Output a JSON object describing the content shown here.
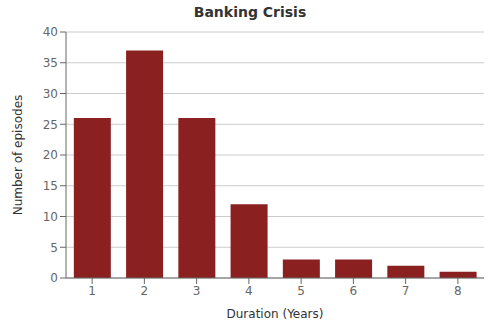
{
  "chart_data": {
    "type": "bar",
    "title": "Banking Crisis",
    "xlabel": "Duration (Years)",
    "ylabel": "Number of episodes",
    "categories": [
      1,
      2,
      3,
      4,
      5,
      6,
      7,
      8
    ],
    "values": [
      26,
      37,
      26,
      12,
      3,
      3,
      2,
      1
    ],
    "color": "#8B2020",
    "ylim": [
      0,
      40
    ],
    "yticks": [
      0,
      5,
      10,
      15,
      20,
      25,
      30,
      35,
      40
    ],
    "grid": true
  }
}
